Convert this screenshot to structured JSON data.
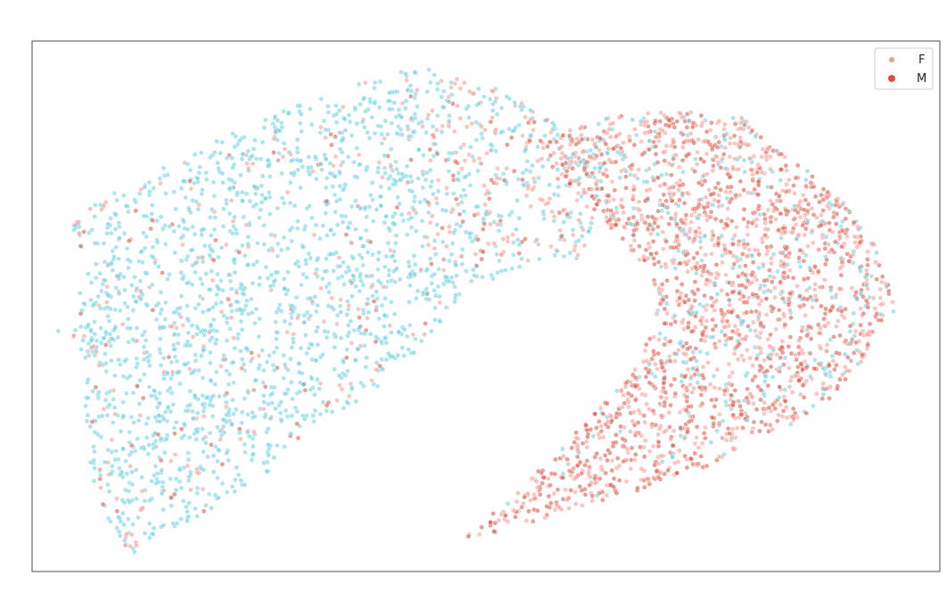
{
  "chart_data": {
    "type": "scatter",
    "title": "",
    "xlabel": "",
    "ylabel": "",
    "xlim": [
      -100,
      100
    ],
    "ylim": [
      -100,
      100
    ],
    "grid": false,
    "axis_ticks": false,
    "legend_position": "top-right",
    "point_alpha": 0.55,
    "series": [
      {
        "name": "F",
        "color": "#f4978e",
        "cluster": "left-arc",
        "point_count_estimate": 2200,
        "regions": [
          {
            "x_center": -62,
            "y_center": 20,
            "density": "high"
          },
          {
            "x_center": -35,
            "y_center": 55,
            "density": "high"
          },
          {
            "x_center": -20,
            "y_center": -5,
            "density": "medium"
          }
        ]
      },
      {
        "name": "M",
        "color": "#d9503f",
        "cluster": "right-arc",
        "point_count_estimate": 2100,
        "regions": [
          {
            "x_center": 55,
            "y_center": 35,
            "density": "high"
          },
          {
            "x_center": 60,
            "y_center": -20,
            "density": "high"
          },
          {
            "x_center": 15,
            "y_center": -75,
            "density": "high"
          }
        ]
      }
    ],
    "overlay_color": "#69d0de"
  },
  "legend": {
    "items": [
      {
        "label": "F",
        "color": "#f4978e"
      },
      {
        "label": "M",
        "color": "#d9503f"
      }
    ]
  }
}
